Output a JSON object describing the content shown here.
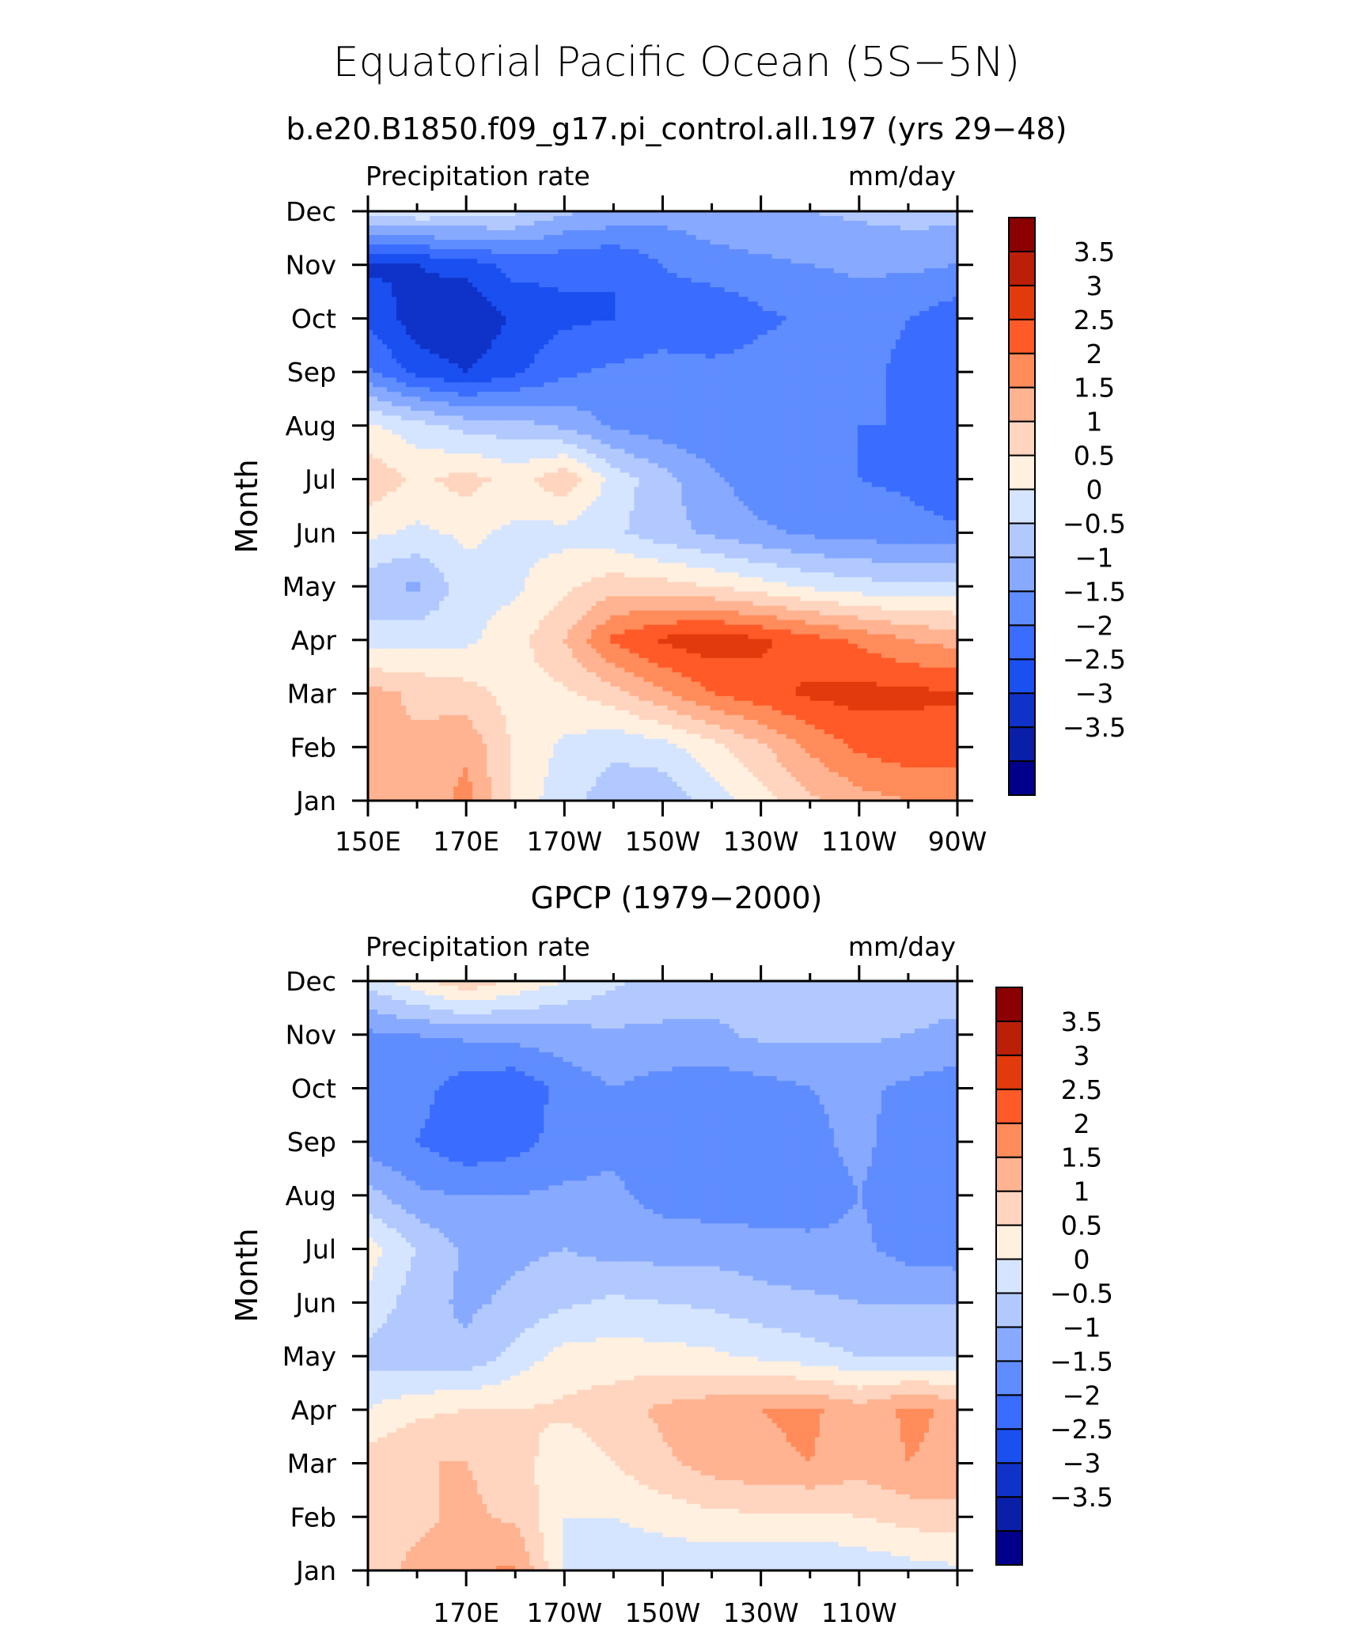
{
  "page": {
    "title": "Equatorial Pacific Ocean (5S−5N)"
  },
  "panels": [
    {
      "subtitle": "b.e20.B1850.f09_g17.pi_control.all.197 (yrs 29−48)",
      "left_label": "Precipitation rate",
      "right_label": "mm/day",
      "y_label": "Month",
      "x_tick_labels": [
        "150E",
        "170E",
        "170W",
        "150W",
        "130W",
        "110W",
        "90W"
      ],
      "y_tick_labels": [
        "Jan",
        "Feb",
        "Mar",
        "Apr",
        "May",
        "Jun",
        "Jul",
        "Aug",
        "Sep",
        "Oct",
        "Nov",
        "Dec"
      ],
      "colorbar_labels": [
        "3.5",
        "3",
        "2.5",
        "2",
        "1.5",
        "1",
        "0.5",
        "0",
        "−0.5",
        "−1",
        "−1.5",
        "−2",
        "−2.5",
        "−3",
        "−3.5"
      ]
    },
    {
      "subtitle": "GPCP (1979−2000)",
      "left_label": "Precipitation rate",
      "right_label": "mm/day",
      "y_label": "Month",
      "x_tick_labels": [
        "170E",
        "170W",
        "150W",
        "130W",
        "110W"
      ],
      "y_tick_labels": [
        "Jan",
        "Feb",
        "Mar",
        "Apr",
        "May",
        "Jun",
        "Jul",
        "Aug",
        "Sep",
        "Oct",
        "Nov",
        "Dec"
      ],
      "colorbar_labels": [
        "3.5",
        "3",
        "2.5",
        "2",
        "1.5",
        "1",
        "0.5",
        "0",
        "−0.5",
        "−1",
        "−1.5",
        "−2",
        "−2.5",
        "−3",
        "−3.5"
      ]
    }
  ],
  "colors": {
    "levels": [
      "#00008b",
      "#0a1fa8",
      "#0f32c8",
      "#1a4ff0",
      "#3a6cff",
      "#5f8dff",
      "#87a9ff",
      "#b2c9ff",
      "#d6e5ff",
      "#fff0e0",
      "#ffd5c0",
      "#ffb391",
      "#ff8c5a",
      "#ff5a28",
      "#e23a0d",
      "#bb1f08",
      "#8b0000"
    ]
  },
  "chart_data": [
    {
      "type": "heatmap",
      "title": "b.e20.B1850.f09_g17.pi_control.all.197 (yrs 29−48)",
      "xlabel": "",
      "ylabel": "Month",
      "x": [
        "150E",
        "160E",
        "170E",
        "180",
        "170W",
        "160W",
        "150W",
        "140W",
        "130W",
        "120W",
        "110W",
        "100W",
        "90W"
      ],
      "y": [
        "Jan",
        "Feb",
        "Mar",
        "Apr",
        "May",
        "Jun",
        "Jul",
        "Aug",
        "Sep",
        "Oct",
        "Nov",
        "Dec"
      ],
      "xlim": [
        "150E",
        "90W"
      ],
      "contour_levels": [
        -3.5,
        -3,
        -2.5,
        -2,
        -1.5,
        -1,
        -0.5,
        0,
        0.5,
        1,
        1.5,
        2,
        2.5,
        3,
        3.5
      ],
      "units": "mm/day",
      "z": [
        [
          1.8,
          1.5,
          2.2,
          0.8,
          0.2,
          -0.3,
          -0.4,
          0.2,
          0.8,
          1.4,
          1.8,
          2.0,
          2.3
        ],
        [
          1.5,
          1.6,
          1.9,
          0.9,
          0.4,
          0.1,
          0.3,
          0.8,
          1.4,
          2.1,
          2.6,
          2.8,
          2.6
        ],
        [
          1.7,
          1.4,
          1.2,
          0.8,
          0.9,
          1.3,
          1.9,
          2.5,
          2.8,
          3.1,
          3.2,
          3.1,
          3.1
        ],
        [
          0.2,
          0.3,
          0.4,
          0.8,
          1.5,
          2.6,
          3.1,
          3.3,
          3.1,
          2.7,
          2.4,
          2.0,
          1.8
        ],
        [
          -0.3,
          -0.6,
          0.3,
          0.4,
          0.9,
          1.3,
          1.2,
          1.0,
          0.7,
          0.4,
          0.2,
          0.1,
          0.2
        ],
        [
          0.6,
          0.4,
          0.6,
          0.4,
          0.3,
          0.1,
          -0.3,
          -0.6,
          -0.9,
          -1.1,
          -1.2,
          -1.3,
          -1.4
        ],
        [
          1.4,
          0.9,
          1.2,
          0.8,
          1.4,
          0.3,
          -0.3,
          -0.9,
          -1.3,
          -1.4,
          -1.5,
          -1.6,
          -1.9
        ],
        [
          0.6,
          0.2,
          -0.2,
          -0.3,
          -0.6,
          -1.1,
          -1.3,
          -1.4,
          -1.5,
          -1.5,
          -1.5,
          -1.5,
          -1.6
        ],
        [
          -1.4,
          -2.2,
          -2.5,
          -2.1,
          -1.6,
          -1.4,
          -1.3,
          -1.3,
          -1.3,
          -1.3,
          -1.4,
          -1.6,
          -2.0
        ],
        [
          -2.1,
          -2.8,
          -3.0,
          -2.4,
          -2.1,
          -2.0,
          -1.8,
          -2.0,
          -1.6,
          -1.4,
          -1.3,
          -1.5,
          -1.8
        ],
        [
          -2.6,
          -2.5,
          -2.3,
          -1.8,
          -1.9,
          -2.0,
          -1.5,
          -1.2,
          -1.1,
          -1.0,
          -0.9,
          -0.9,
          -1.0
        ],
        [
          0.2,
          0.4,
          0.3,
          0.1,
          -0.4,
          -0.6,
          -0.8,
          -0.7,
          -0.6,
          -0.5,
          -0.4,
          -0.3,
          -0.3
        ]
      ]
    },
    {
      "type": "heatmap",
      "title": "GPCP (1979−2000)",
      "xlabel": "",
      "ylabel": "Month",
      "x": [
        "150E",
        "160E",
        "170E",
        "180",
        "170W",
        "160W",
        "150W",
        "140W",
        "130W",
        "120W",
        "110W",
        "100W",
        "90W"
      ],
      "y": [
        "Jan",
        "Feb",
        "Mar",
        "Apr",
        "May",
        "Jun",
        "Jul",
        "Aug",
        "Sep",
        "Oct",
        "Nov",
        "Dec"
      ],
      "xlim": [
        "150E",
        "90W"
      ],
      "contour_levels": [
        -3.5,
        -3,
        -2.5,
        -2,
        -1.5,
        -1,
        -0.5,
        0,
        0.5,
        1,
        1.5,
        2,
        2.5,
        3,
        3.5
      ],
      "units": "mm/day",
      "z": [
        [
          1.3,
          1.6,
          1.9,
          2.1,
          0.4,
          0.2,
          0.1,
          0.1,
          0.1,
          0.0,
          0.1,
          0.3,
          0.4
        ],
        [
          1.5,
          1.4,
          1.6,
          1.4,
          0.5,
          0.5,
          0.7,
          0.9,
          0.9,
          0.9,
          1.0,
          1.2,
          1.3
        ],
        [
          1.3,
          1.5,
          1.5,
          1.3,
          0.6,
          1.0,
          1.4,
          1.7,
          1.9,
          2.0,
          1.7,
          2.0,
          1.9
        ],
        [
          0.5,
          0.9,
          1.0,
          1.0,
          1.1,
          1.3,
          1.6,
          1.8,
          2.0,
          2.1,
          1.7,
          2.1,
          1.9
        ],
        [
          -0.2,
          -0.4,
          -0.4,
          0.2,
          0.7,
          0.7,
          0.7,
          0.6,
          0.4,
          0.2,
          0.0,
          0.0,
          0.0
        ],
        [
          0.4,
          -0.3,
          -0.6,
          -0.4,
          -0.1,
          0.1,
          0.0,
          -0.1,
          -0.3,
          -0.4,
          -0.5,
          -0.5,
          -0.5
        ],
        [
          0.7,
          0.0,
          -0.6,
          -0.6,
          -0.5,
          -0.7,
          -0.7,
          -0.7,
          -0.8,
          -0.9,
          -0.9,
          -1.2,
          -1.3
        ],
        [
          -0.3,
          -0.9,
          -1.0,
          -1.0,
          -0.9,
          -0.9,
          -1.2,
          -1.3,
          -1.3,
          -1.2,
          -1.0,
          -1.2,
          -1.1
        ],
        [
          -1.3,
          -1.5,
          -1.9,
          -1.7,
          -1.3,
          -1.1,
          -1.3,
          -1.3,
          -1.3,
          -1.1,
          -0.9,
          -1.2,
          -1.2
        ],
        [
          -1.1,
          -1.3,
          -1.8,
          -1.9,
          -1.3,
          -1.0,
          -1.2,
          -1.3,
          -1.2,
          -1.0,
          -0.9,
          -1.1,
          -1.3
        ],
        [
          -1.1,
          -1.0,
          -0.9,
          -0.8,
          -0.7,
          -0.6,
          -0.6,
          -0.6,
          -0.4,
          -0.4,
          -0.4,
          -0.5,
          -0.6
        ],
        [
          0.2,
          0.8,
          1.4,
          0.9,
          0.5,
          0.1,
          -0.2,
          -0.3,
          -0.3,
          -0.3,
          -0.3,
          -0.3,
          -0.3
        ]
      ]
    }
  ]
}
